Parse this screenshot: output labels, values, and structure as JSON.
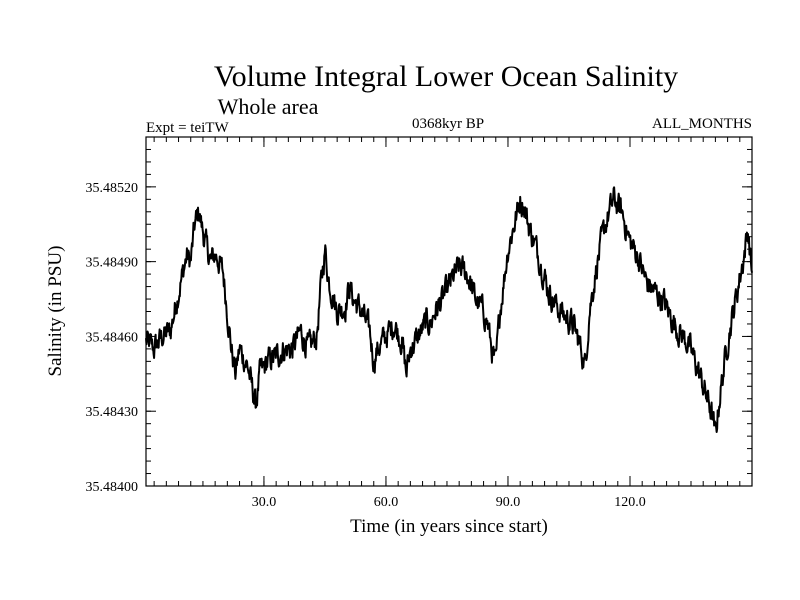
{
  "chart_data": {
    "type": "line",
    "title": "Volume Integral Lower Ocean Salinity",
    "subtitle": "Whole area",
    "experiment": "Expt = teiTW",
    "period": "0368kyr BP",
    "months": "ALL_MONTHS",
    "xlabel": "Time (in years since start)",
    "ylabel": "Salinity (in PSU)",
    "xlim": [
      1,
      150
    ],
    "ylim": [
      35.484,
      35.4854
    ],
    "x_ticks": [
      30,
      60,
      90,
      120
    ],
    "x_tick_labels": [
      "30.0",
      "60.0",
      "90.0",
      "120.0"
    ],
    "y_ticks": [
      35.484,
      35.4843,
      35.4846,
      35.4849,
      35.4852
    ],
    "y_tick_labels": [
      "35.48400",
      "35.48430",
      "35.48460",
      "35.48490",
      "35.48520"
    ],
    "grid": false,
    "series": [
      {
        "name": "Salinity",
        "color": "#000000",
        "points": [
          [
            1,
            35.48458
          ],
          [
            3,
            35.48455
          ],
          [
            5,
            35.4846
          ],
          [
            7,
            35.48462
          ],
          [
            9,
            35.48478
          ],
          [
            11,
            35.48492
          ],
          [
            12,
            35.4849
          ],
          [
            13,
            35.48505
          ],
          [
            14,
            35.4851
          ],
          [
            15,
            35.48502
          ],
          [
            16,
            35.48495
          ],
          [
            17,
            35.4849
          ],
          [
            18,
            35.48493
          ],
          [
            19,
            35.4849
          ],
          [
            20,
            35.48485
          ],
          [
            21,
            35.4847
          ],
          [
            22,
            35.48455
          ],
          [
            23,
            35.48445
          ],
          [
            24,
            35.48455
          ],
          [
            26,
            35.48448
          ],
          [
            27,
            35.4844
          ],
          [
            28,
            35.48432
          ],
          [
            29,
            35.48445
          ],
          [
            31,
            35.4845
          ],
          [
            33,
            35.48452
          ],
          [
            35,
            35.48455
          ],
          [
            37,
            35.48455
          ],
          [
            39,
            35.48462
          ],
          [
            41,
            35.48455
          ],
          [
            43,
            35.4846
          ],
          [
            44,
            35.4848
          ],
          [
            45,
            35.48495
          ],
          [
            46,
            35.48482
          ],
          [
            48,
            35.4847
          ],
          [
            50,
            35.48472
          ],
          [
            51,
            35.4848
          ],
          [
            52,
            35.48475
          ],
          [
            54,
            35.4847
          ],
          [
            56,
            35.48462
          ],
          [
            57,
            35.4845
          ],
          [
            58,
            35.48455
          ],
          [
            60,
            35.4846
          ],
          [
            62,
            35.48465
          ],
          [
            64,
            35.48458
          ],
          [
            65,
            35.48445
          ],
          [
            66,
            35.48455
          ],
          [
            68,
            35.4846
          ],
          [
            70,
            35.48466
          ],
          [
            71,
            35.48465
          ],
          [
            72,
            35.4847
          ],
          [
            74,
            35.48475
          ],
          [
            76,
            35.48482
          ],
          [
            78,
            35.48488
          ],
          [
            80,
            35.48485
          ],
          [
            82,
            35.48475
          ],
          [
            84,
            35.4847
          ],
          [
            85,
            35.48465
          ],
          [
            86,
            35.48455
          ],
          [
            87,
            35.48448
          ],
          [
            88,
            35.4847
          ],
          [
            90,
            35.48495
          ],
          [
            92,
            35.48508
          ],
          [
            93,
            35.48515
          ],
          [
            94,
            35.48512
          ],
          [
            95,
            35.48505
          ],
          [
            96,
            35.485
          ],
          [
            98,
            35.4849
          ],
          [
            100,
            35.48478
          ],
          [
            102,
            35.48472
          ],
          [
            104,
            35.48468
          ],
          [
            106,
            35.48465
          ],
          [
            108,
            35.48455
          ],
          [
            109,
            35.48448
          ],
          [
            110,
            35.4847
          ],
          [
            112,
            35.4849
          ],
          [
            114,
            35.48505
          ],
          [
            116,
            35.48515
          ],
          [
            118,
            35.4851
          ],
          [
            120,
            35.48498
          ],
          [
            122,
            35.48492
          ],
          [
            124,
            35.48482
          ],
          [
            126,
            35.48478
          ],
          [
            128,
            35.48475
          ],
          [
            130,
            35.48468
          ],
          [
            132,
            35.48462
          ],
          [
            134,
            35.48458
          ],
          [
            136,
            35.4845
          ],
          [
            138,
            35.4844
          ],
          [
            140,
            35.4843
          ],
          [
            141,
            35.4842
          ],
          [
            142,
            35.48435
          ],
          [
            144,
            35.48458
          ],
          [
            146,
            35.48475
          ],
          [
            148,
            35.48492
          ],
          [
            149,
            35.48503
          ],
          [
            150,
            35.48485
          ]
        ]
      }
    ]
  }
}
